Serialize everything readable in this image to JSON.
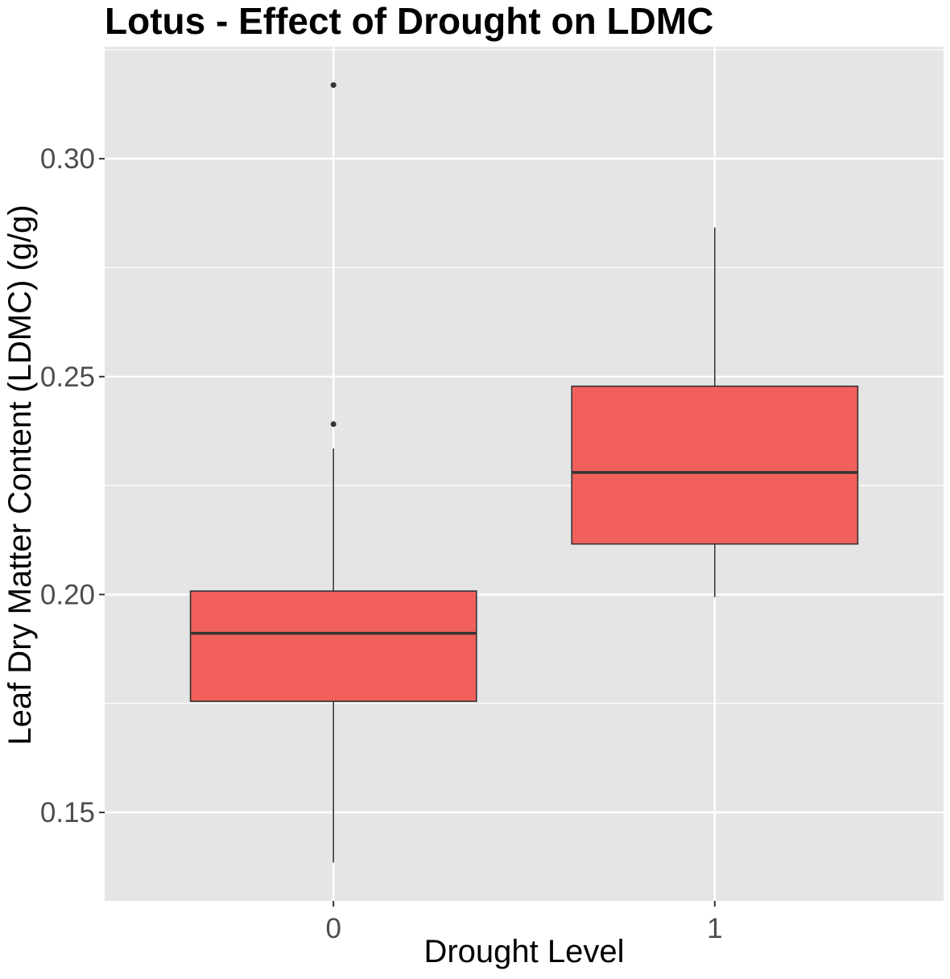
{
  "chart_data": {
    "type": "boxplot",
    "title": "Lotus - Effect of Drought on LDMC",
    "xlabel": "Drought Level",
    "ylabel": "Leaf Dry Matter Content (LDMC) (g/g)",
    "categories": [
      "0",
      "1"
    ],
    "y_ticks": [
      0.15,
      0.2,
      0.25,
      0.3
    ],
    "y_tick_labels": [
      "0.15",
      "0.20",
      "0.25",
      "0.30"
    ],
    "ylim": [
      0.1297,
      0.3257
    ],
    "grid": true,
    "boxes": [
      {
        "category": "0",
        "whisker_low": 0.1385,
        "q1": 0.1755,
        "median": 0.1911,
        "q3": 0.2008,
        "whisker_high": 0.2335,
        "outliers": [
          0.2391,
          0.3169
        ]
      },
      {
        "category": "1",
        "whisker_low": 0.1994,
        "q1": 0.2116,
        "median": 0.228,
        "q3": 0.2478,
        "whisker_high": 0.2842,
        "outliers": []
      }
    ],
    "colors": {
      "panel": "#e5e5e5",
      "grid_major": "#ffffff",
      "box_fill": "#f2605c",
      "box_line": "#333333",
      "axis_text": "#4d4d4d",
      "title": "#000000"
    }
  }
}
